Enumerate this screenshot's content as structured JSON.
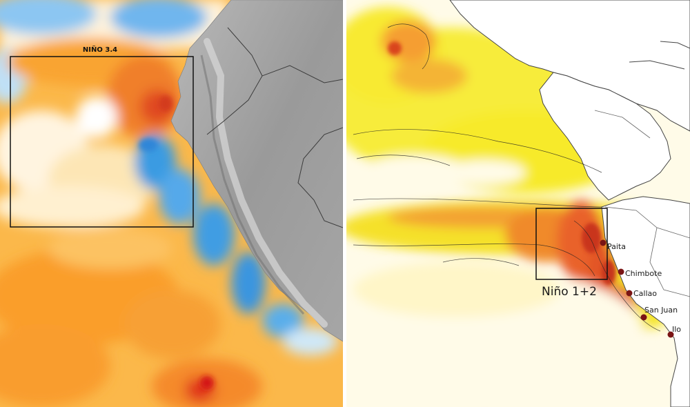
{
  "left_panel": {
    "region_label": "NIÑO 3.4"
  },
  "right_panel": {
    "region_label": "Niño 1+2",
    "ports": [
      {
        "name": "Paita"
      },
      {
        "name": "Chimbote"
      },
      {
        "name": "Callao"
      },
      {
        "name": "San Juan"
      },
      {
        "name": "Ilo"
      }
    ]
  },
  "colors": {
    "ocean_warm": "#fbb02f",
    "ocean_pale": "#fff7d8",
    "ocean_cool": "#4aa6e6",
    "anomaly_hot": "#e8502a",
    "land_gray": "#9b9b9b",
    "right_yellow": "#f6e822",
    "right_orange": "#f29a2e",
    "right_red": "#d9441f",
    "port_dot": "#7a1414"
  }
}
